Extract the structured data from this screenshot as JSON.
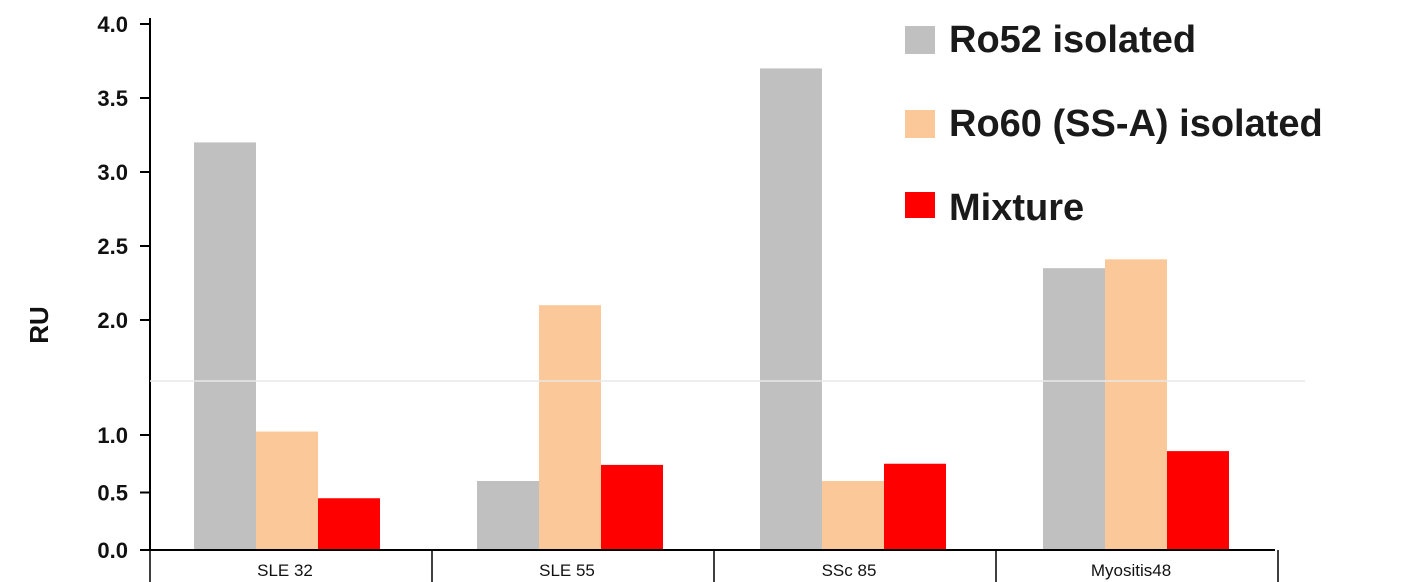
{
  "chart_data": {
    "type": "bar",
    "categories": [
      "SLE 32",
      "SLE 55",
      "SSc 85",
      "Myositis48"
    ],
    "series": [
      {
        "name": "Ro52 isolated",
        "color": "#c0c0c0",
        "values": [
          3.2,
          0.6,
          3.7,
          2.35
        ]
      },
      {
        "name": "Ro60 (SS-A) isolated",
        "color": "#fbc899",
        "values": [
          1.03,
          2.1,
          0.6,
          2.41
        ]
      },
      {
        "name": "Mixture",
        "color": "#ff0000",
        "values": [
          0.45,
          0.74,
          0.75,
          0.86
        ]
      }
    ],
    "ylabel": "RU",
    "ylim": [
      0,
      4.0
    ],
    "yticks": [
      "0.0",
      "0.5",
      "1.0",
      "2.0",
      "2.5",
      "3.0",
      "3.5",
      "4.0"
    ],
    "grid": false,
    "legend_position": "top-right"
  }
}
